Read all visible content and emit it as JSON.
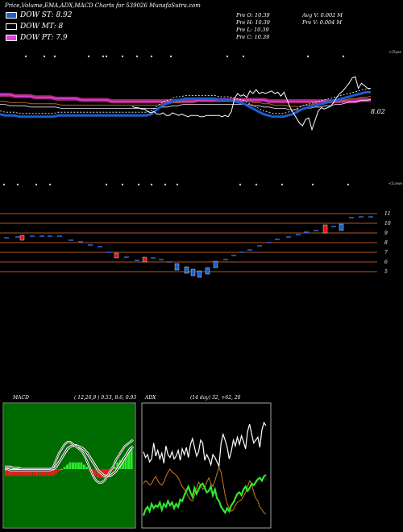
{
  "header": {
    "title": "Price,Volume,EMA,ADX,MACD Charts for 539026 MunafaSutra.com"
  },
  "legend": [
    {
      "label": "DOW ST: 8.92",
      "color": "#1a5fd0"
    },
    {
      "label": "DOW MT: 8",
      "color": "#000000"
    },
    {
      "label": "DOW PT: 7.9",
      "color": "#e040e0"
    }
  ],
  "stats": {
    "prev_open": "Pre   O: 10.39",
    "prev_high": "Pre   H: 10.39",
    "prev_low": "Pre   L: 10.39",
    "prev_close": "Pre   C: 10.39",
    "avg_volume": "Avg V: 0.002  M",
    "prev_volume": "Pre   V: 0.004  M"
  },
  "chart_data": [
    {
      "type": "line",
      "name": "price-ema",
      "labels": {
        "top": "<Tops",
        "bottom": "<Lows",
        "last_price": "8.02"
      },
      "y_domain": [
        3,
        13
      ],
      "price": [
        9.0,
        8.9,
        8.9,
        8.8,
        8.8,
        8.6,
        8.5,
        8.6,
        8.4,
        8.4,
        8.5,
        8.3,
        8.3,
        8.5,
        8.4,
        8.3,
        8.4,
        8.3,
        8.2,
        8.3,
        8.3,
        8.3,
        8.2,
        8.2,
        8.3,
        8.3,
        8.3,
        8.3,
        8.3,
        8.2,
        8.3,
        8.2,
        8.6,
        9.6,
        10.0,
        9.8,
        9.9,
        9.7,
        10.2,
        10.0,
        10.3,
        10.0,
        10.1,
        10.0,
        10.1,
        10.2,
        10.0,
        10.1,
        9.8,
        10.1,
        9.5,
        8.9,
        8.5,
        8.1,
        7.7,
        7.5,
        8.0,
        8.1,
        7.2,
        7.9,
        8.6,
        8.9,
        8.8,
        8.9,
        9.0,
        9.3,
        9.7,
        10.0,
        10.2,
        10.5,
        10.8,
        11.2,
        11.3,
        10.4,
        10.8,
        10.6,
        10.4,
        10.4
      ],
      "ema_short": [
        8.4,
        8.3,
        8.3,
        8.3,
        8.2,
        8.2,
        8.2,
        8.2,
        8.2,
        8.2,
        8.2,
        8.2,
        8.3,
        8.3,
        8.3,
        8.3,
        8.3,
        8.3,
        8.3,
        8.3,
        8.3,
        8.3,
        8.3,
        8.3,
        8.3,
        8.3,
        8.3,
        8.3,
        8.3,
        8.3,
        8.3,
        8.4,
        8.7,
        9.0,
        9.2,
        9.3,
        9.5,
        9.5,
        9.6,
        9.6,
        9.6,
        9.6,
        9.6,
        9.6,
        9.6,
        9.5,
        9.5,
        9.5,
        9.4,
        9.3,
        9.2,
        9.0,
        8.8,
        8.6,
        8.4,
        8.3,
        8.2,
        8.2,
        8.2,
        8.3,
        8.4,
        8.6,
        8.8,
        8.9,
        9.0,
        9.1,
        9.2,
        9.3,
        9.4,
        9.5,
        9.6,
        9.7,
        9.8,
        9.9,
        10.0,
        10.1,
        10.1
      ],
      "ema_mid": [
        9.4,
        9.4,
        9.3,
        9.3,
        9.3,
        9.3,
        9.2,
        9.2,
        9.2,
        9.2,
        9.2,
        9.2,
        9.1,
        9.1,
        9.1,
        9.1,
        9.1,
        9.1,
        9.1,
        9.1,
        9.1,
        9.1,
        9.1,
        9.1,
        9.1,
        9.1,
        9.1,
        9.1,
        9.1,
        9.1,
        9.1,
        9.1,
        9.2,
        9.2,
        9.3,
        9.3,
        9.4,
        9.4,
        9.4,
        9.4,
        9.4,
        9.4,
        9.4,
        9.4,
        9.4,
        9.4,
        9.4,
        9.4,
        9.4,
        9.4,
        9.3,
        9.3,
        9.2,
        9.2,
        9.1,
        9.1,
        9.1,
        9.0,
        9.0,
        9.0,
        9.1,
        9.1,
        9.2,
        9.2,
        9.3,
        9.3,
        9.4,
        9.4,
        9.5,
        9.6,
        9.6,
        9.7,
        9.7,
        9.8
      ],
      "ema_long": [
        9.9,
        9.9,
        9.9,
        9.8,
        9.8,
        9.8,
        9.8,
        9.7,
        9.7,
        9.7,
        9.7,
        9.6,
        9.6,
        9.6,
        9.6,
        9.6,
        9.5,
        9.5,
        9.5,
        9.5,
        9.5,
        9.5,
        9.4,
        9.4,
        9.4,
        9.4,
        9.4,
        9.4,
        9.4,
        9.4,
        9.4,
        9.4,
        9.4,
        9.4,
        9.4,
        9.4,
        9.4,
        9.4,
        9.4,
        9.5,
        9.5,
        9.5,
        9.5,
        9.5,
        9.5,
        9.5,
        9.5,
        9.5,
        9.5,
        9.5,
        9.5,
        9.5,
        9.5,
        9.4,
        9.4,
        9.4,
        9.4,
        9.4,
        9.4,
        9.4,
        9.4,
        9.4,
        9.4,
        9.4,
        9.4,
        9.4,
        9.4,
        9.4,
        9.4,
        9.4,
        9.4,
        9.5,
        9.5,
        9.5
      ]
    },
    {
      "type": "line",
      "name": "price-levels",
      "y_ticks": [
        "11",
        "10",
        "9",
        "8",
        "7",
        "6",
        "5"
      ]
    },
    {
      "type": "line",
      "name": "macd",
      "title": "MACD",
      "params": "( 12,26,9 ) 9.53,  8.6,  0.93",
      "histogram": [
        -0.3,
        -0.3,
        -0.3,
        -0.3,
        -0.3,
        -0.3,
        -0.3,
        -0.3,
        -0.3,
        -0.3,
        -0.3,
        -0.3,
        -0.3,
        -0.3,
        -0.3,
        -0.3,
        -0.3,
        -0.3,
        -0.2,
        -0.1,
        0.0,
        0.1,
        0.2,
        0.3,
        0.3,
        0.3,
        0.3,
        0.3,
        0.2,
        0.1,
        -0.1,
        -0.2,
        -0.3,
        -0.4,
        -0.4,
        -0.4,
        -0.3,
        -0.2,
        -0.1,
        0.1,
        0.3,
        0.4,
        0.5,
        0.6,
        0.8,
        0.9
      ],
      "macd": [
        0.0,
        0.0,
        -0.05,
        -0.05,
        -0.05,
        -0.05,
        -0.05,
        -0.05,
        -0.05,
        -0.05,
        -0.05,
        -0.05,
        -0.05,
        -0.05,
        -0.05,
        -0.05,
        -0.05,
        0.1,
        0.4,
        0.7,
        0.9,
        1.1,
        1.2,
        1.2,
        1.1,
        1.0,
        0.9,
        0.8,
        0.6,
        0.3,
        0.0,
        -0.3,
        -0.5,
        -0.6,
        -0.6,
        -0.5,
        -0.3,
        -0.1,
        0.1,
        0.4,
        0.6,
        0.8,
        1.0,
        1.1,
        1.2,
        1.3
      ],
      "signal": [
        0.1,
        0.1,
        0.1,
        0.05,
        0.05,
        0.05,
        0.0,
        0.0,
        0.0,
        0.0,
        0.0,
        0.0,
        0.0,
        0.0,
        0.0,
        0.0,
        0.0,
        0.0,
        0.1,
        0.3,
        0.5,
        0.7,
        0.9,
        1.0,
        1.05,
        1.05,
        1.0,
        0.95,
        0.85,
        0.7,
        0.5,
        0.3,
        0.1,
        -0.1,
        -0.2,
        -0.3,
        -0.3,
        -0.3,
        -0.2,
        -0.1,
        0.1,
        0.3,
        0.5,
        0.7,
        0.9,
        1.0
      ]
    },
    {
      "type": "line",
      "name": "adx",
      "title": "ADX",
      "params": "(14  day) 32,  +62,  20",
      "white": [
        52,
        48,
        50,
        45,
        47,
        58,
        49,
        53,
        47,
        51,
        44,
        56,
        50,
        48,
        52,
        47,
        49,
        53,
        46,
        54,
        50,
        55,
        48,
        57,
        61,
        55,
        49,
        52,
        60,
        58,
        46,
        50,
        47,
        43,
        50,
        48,
        45,
        42,
        58,
        64,
        60,
        55,
        47,
        52,
        60,
        56,
        62,
        57,
        63,
        59,
        54,
        66,
        71,
        64,
        58,
        60,
        62,
        55,
        67,
        72,
        70
      ],
      "green": [
        8,
        12,
        14,
        11,
        16,
        13,
        15,
        14,
        17,
        12,
        16,
        14,
        18,
        15,
        17,
        13,
        16,
        14,
        19,
        18,
        22,
        25,
        28,
        24,
        21,
        27,
        23,
        26,
        29,
        30,
        27,
        24,
        25,
        28,
        22,
        26,
        20,
        18,
        14,
        12,
        10,
        13,
        11,
        15,
        17,
        20,
        23,
        24,
        22,
        26,
        28,
        25,
        27,
        30,
        29,
        31,
        33,
        34,
        32,
        35,
        36
      ],
      "orange": [
        30,
        32,
        31,
        29,
        30,
        33,
        35,
        32,
        30,
        29,
        31,
        35,
        38,
        40,
        38,
        37,
        36,
        34,
        31,
        28,
        26,
        24,
        21,
        19,
        18,
        22,
        27,
        31,
        29,
        26,
        27,
        31,
        34,
        30,
        28,
        32,
        37,
        41,
        38,
        30,
        22,
        16,
        13,
        11,
        12,
        15,
        17,
        18,
        19,
        21,
        24,
        28,
        32,
        30,
        24,
        20,
        18,
        14,
        12,
        10,
        9
      ]
    }
  ]
}
